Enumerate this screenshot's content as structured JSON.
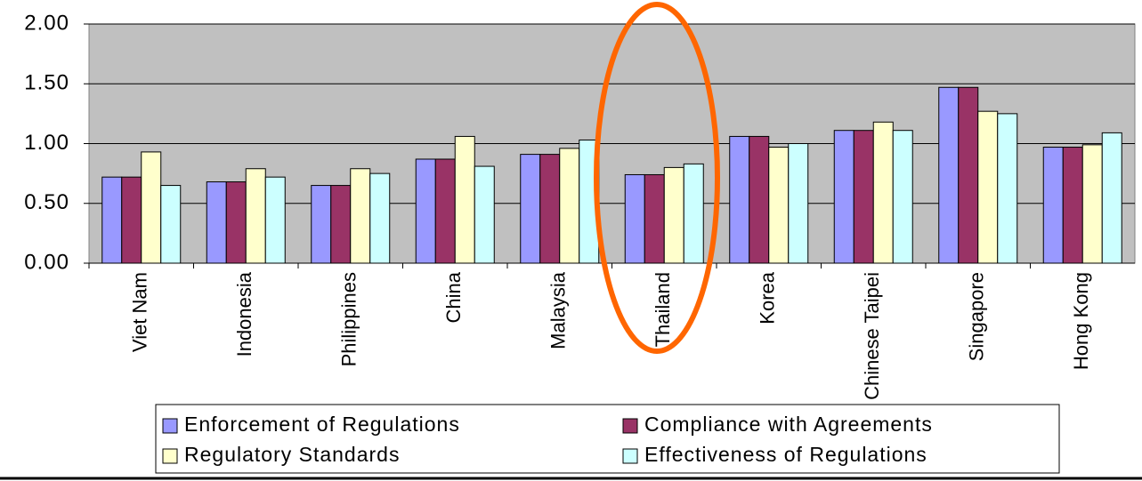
{
  "chart_data": {
    "type": "bar",
    "categories": [
      "Viet Nam",
      "Indonesia",
      "Philippines",
      "China",
      "Malaysia",
      "Thailand",
      "Korea",
      "Chinese Taipei",
      "Singapore",
      "Hong Kong"
    ],
    "series": [
      {
        "name": "Enforcement of Regulations",
        "color": "#9999ff",
        "values": [
          0.72,
          0.68,
          0.65,
          0.87,
          0.91,
          0.74,
          1.06,
          1.11,
          1.47,
          0.97
        ]
      },
      {
        "name": "Compliance with Agreements",
        "color": "#993366",
        "values": [
          0.72,
          0.68,
          0.65,
          0.87,
          0.91,
          0.74,
          1.06,
          1.11,
          1.47,
          0.97
        ]
      },
      {
        "name": "Regulatory Standards",
        "color": "#ffffcc",
        "values": [
          0.93,
          0.79,
          0.79,
          1.06,
          0.96,
          0.8,
          0.97,
          1.18,
          1.27,
          0.99
        ]
      },
      {
        "name": "Effectiveness of Regulations",
        "color": "#ccffff",
        "values": [
          0.65,
          0.72,
          0.75,
          0.81,
          1.03,
          0.83,
          1.0,
          1.11,
          1.25,
          1.09
        ]
      }
    ],
    "ylim": [
      0,
      2
    ],
    "yticks": [
      {
        "value": 0,
        "label": "0.00"
      },
      {
        "value": 0.5,
        "label": "0.50"
      },
      {
        "value": 1,
        "label": "1.00"
      },
      {
        "value": 1.5,
        "label": "1.50"
      },
      {
        "value": 2,
        "label": "2.00"
      }
    ],
    "grid": true,
    "legend": "bottom"
  }
}
